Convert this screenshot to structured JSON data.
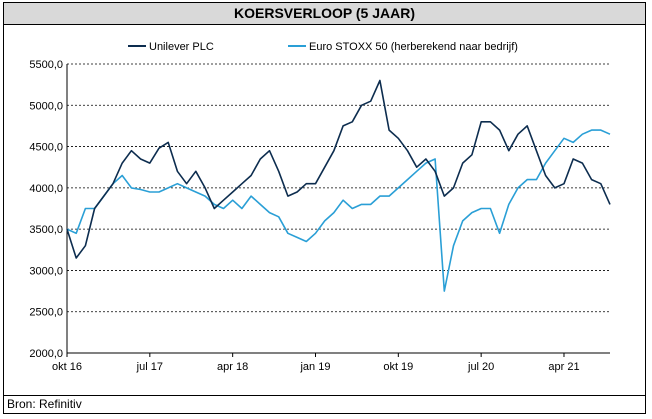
{
  "title": "KOERSVERLOOP (5 JAAR)",
  "source": "Bron: Refinitiv",
  "colors": {
    "unilever": "#0d2d4f",
    "stoxx": "#2a9fd6",
    "grid": "#000000"
  },
  "chart_data": {
    "type": "line",
    "title": "KOERSVERLOOP (5 JAAR)",
    "xlabel": "",
    "ylabel": "",
    "ylim": [
      2000,
      5500
    ],
    "yticks": [
      "5500,0",
      "5000,0",
      "4500,0",
      "4000,0",
      "3500,0",
      "3000,0",
      "2500,0",
      "2000,0"
    ],
    "xticks": [
      "okt 16",
      "jul 17",
      "apr 18",
      "jan 19",
      "okt 19",
      "jul 20",
      "apr 21"
    ],
    "grid": "horizontal dashed",
    "legend_position": "top",
    "series": [
      {
        "name": "Unilever PLC",
        "color": "#0d2d4f",
        "x": [
          "2016-10",
          "2016-11",
          "2016-12",
          "2017-01",
          "2017-02",
          "2017-03",
          "2017-04",
          "2017-05",
          "2017-06",
          "2017-07",
          "2017-08",
          "2017-09",
          "2017-10",
          "2017-11",
          "2017-12",
          "2018-01",
          "2018-02",
          "2018-03",
          "2018-04",
          "2018-05",
          "2018-06",
          "2018-07",
          "2018-08",
          "2018-09",
          "2018-10",
          "2018-11",
          "2018-12",
          "2019-01",
          "2019-02",
          "2019-03",
          "2019-04",
          "2019-05",
          "2019-06",
          "2019-07",
          "2019-08",
          "2019-09",
          "2019-10",
          "2019-11",
          "2019-12",
          "2020-01",
          "2020-02",
          "2020-03",
          "2020-04",
          "2020-05",
          "2020-06",
          "2020-07",
          "2020-08",
          "2020-09",
          "2020-10",
          "2020-11",
          "2020-12",
          "2021-01",
          "2021-02",
          "2021-03",
          "2021-04",
          "2021-05",
          "2021-06",
          "2021-07",
          "2021-08",
          "2021-09"
        ],
        "values": [
          3500,
          3150,
          3300,
          3750,
          3900,
          4050,
          4300,
          4450,
          4350,
          4300,
          4480,
          4550,
          4200,
          4050,
          4200,
          4000,
          3750,
          3850,
          3950,
          4050,
          4150,
          4350,
          4450,
          4200,
          3900,
          3950,
          4050,
          4050,
          4250,
          4450,
          4750,
          4800,
          5000,
          5050,
          5300,
          4700,
          4600,
          4450,
          4250,
          4350,
          4200,
          3900,
          4000,
          4300,
          4400,
          4800,
          4800,
          4700,
          4450,
          4650,
          4750,
          4450,
          4150,
          4000,
          4050,
          4350,
          4300,
          4100,
          4050,
          3800
        ]
      },
      {
        "name": "Euro STOXX 50 (herberekend naar bedrijf)",
        "color": "#2a9fd6",
        "x": [
          "2016-10",
          "2016-11",
          "2016-12",
          "2017-01",
          "2017-02",
          "2017-03",
          "2017-04",
          "2017-05",
          "2017-06",
          "2017-07",
          "2017-08",
          "2017-09",
          "2017-10",
          "2017-11",
          "2017-12",
          "2018-01",
          "2018-02",
          "2018-03",
          "2018-04",
          "2018-05",
          "2018-06",
          "2018-07",
          "2018-08",
          "2018-09",
          "2018-10",
          "2018-11",
          "2018-12",
          "2019-01",
          "2019-02",
          "2019-03",
          "2019-04",
          "2019-05",
          "2019-06",
          "2019-07",
          "2019-08",
          "2019-09",
          "2019-10",
          "2019-11",
          "2019-12",
          "2020-01",
          "2020-02",
          "2020-03",
          "2020-04",
          "2020-05",
          "2020-06",
          "2020-07",
          "2020-08",
          "2020-09",
          "2020-10",
          "2020-11",
          "2020-12",
          "2021-01",
          "2021-02",
          "2021-03",
          "2021-04",
          "2021-05",
          "2021-06",
          "2021-07",
          "2021-08",
          "2021-09"
        ],
        "values": [
          3500,
          3450,
          3750,
          3750,
          3900,
          4050,
          4150,
          4000,
          3980,
          3950,
          3950,
          4000,
          4050,
          4000,
          3950,
          3900,
          3800,
          3750,
          3850,
          3750,
          3900,
          3800,
          3700,
          3650,
          3450,
          3400,
          3350,
          3450,
          3600,
          3700,
          3850,
          3750,
          3800,
          3800,
          3900,
          3900,
          4000,
          4100,
          4200,
          4300,
          4350,
          2750,
          3300,
          3600,
          3700,
          3750,
          3750,
          3450,
          3800,
          4000,
          4100,
          4100,
          4300,
          4450,
          4600,
          4550,
          4650,
          4700,
          4700,
          4650
        ]
      }
    ]
  }
}
